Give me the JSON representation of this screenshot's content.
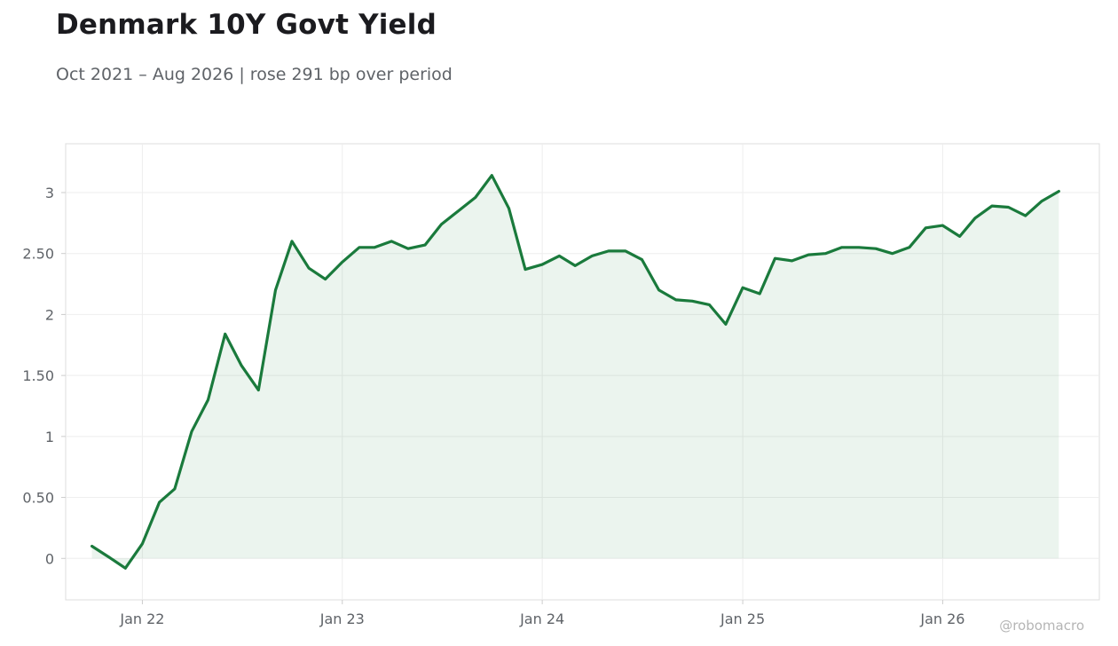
{
  "header": {
    "title": "Denmark 10Y Govt Yield",
    "subtitle": "Oct 2021 – Aug 2026 | rose 291 bp over period"
  },
  "watermark": "@robomacro",
  "colors": {
    "line": "#1a7a3c",
    "fill": "#1a7a3c",
    "grid": "#eeeeee",
    "frame": "#dddddd"
  },
  "chart_data": {
    "type": "area",
    "title": "Denmark 10Y Govt Yield",
    "subtitle": "Oct 2021 – Aug 2026 | rose 291 bp over period",
    "xlabel": "",
    "ylabel": "",
    "ylim": [
      -0.34,
      3.4
    ],
    "xlim": [
      "2021-08-14",
      "2026-10-14"
    ],
    "grid": true,
    "legend": "none",
    "x_ticks": [
      {
        "date": "2022-01-01",
        "label": "Jan 22"
      },
      {
        "date": "2023-01-01",
        "label": "Jan 23"
      },
      {
        "date": "2024-01-01",
        "label": "Jan 24"
      },
      {
        "date": "2025-01-01",
        "label": "Jan 25"
      },
      {
        "date": "2026-01-01",
        "label": "Jan 26"
      }
    ],
    "y_ticks": [
      {
        "value": 0,
        "label": "0"
      },
      {
        "value": 0.5,
        "label": "0.50"
      },
      {
        "value": 1,
        "label": "1"
      },
      {
        "value": 1.5,
        "label": "1.50"
      },
      {
        "value": 2,
        "label": "2"
      },
      {
        "value": 2.5,
        "label": "2.50"
      },
      {
        "value": 3,
        "label": "3"
      }
    ],
    "series": [
      {
        "points": [
          [
            "2021-10-01",
            0.1
          ],
          [
            "2021-11-01",
            0.01
          ],
          [
            "2021-12-01",
            -0.08
          ],
          [
            "2022-01-01",
            0.12
          ],
          [
            "2022-02-01",
            0.46
          ],
          [
            "2022-03-01",
            0.57
          ],
          [
            "2022-04-01",
            1.04
          ],
          [
            "2022-05-01",
            1.3
          ],
          [
            "2022-06-01",
            1.84
          ],
          [
            "2022-07-01",
            1.58
          ],
          [
            "2022-08-01",
            1.38
          ],
          [
            "2022-09-01",
            2.2
          ],
          [
            "2022-10-01",
            2.6
          ],
          [
            "2022-11-01",
            2.38
          ],
          [
            "2022-12-01",
            2.29
          ],
          [
            "2023-01-01",
            2.43
          ],
          [
            "2023-02-01",
            2.55
          ],
          [
            "2023-03-01",
            2.55
          ],
          [
            "2023-04-01",
            2.6
          ],
          [
            "2023-05-01",
            2.54
          ],
          [
            "2023-06-01",
            2.57
          ],
          [
            "2023-07-01",
            2.74
          ],
          [
            "2023-08-01",
            2.85
          ],
          [
            "2023-09-01",
            2.96
          ],
          [
            "2023-10-01",
            3.14
          ],
          [
            "2023-11-01",
            2.87
          ],
          [
            "2023-12-01",
            2.37
          ],
          [
            "2024-01-01",
            2.41
          ],
          [
            "2024-02-01",
            2.48
          ],
          [
            "2024-03-01",
            2.4
          ],
          [
            "2024-04-01",
            2.48
          ],
          [
            "2024-05-01",
            2.52
          ],
          [
            "2024-06-01",
            2.52
          ],
          [
            "2024-07-01",
            2.45
          ],
          [
            "2024-08-01",
            2.2
          ],
          [
            "2024-09-01",
            2.12
          ],
          [
            "2024-10-01",
            2.11
          ],
          [
            "2024-11-01",
            2.08
          ],
          [
            "2024-12-01",
            1.92
          ],
          [
            "2025-01-01",
            2.22
          ],
          [
            "2025-02-01",
            2.17
          ],
          [
            "2025-03-01",
            2.46
          ],
          [
            "2025-04-01",
            2.44
          ],
          [
            "2025-05-01",
            2.49
          ],
          [
            "2025-06-01",
            2.5
          ],
          [
            "2025-07-01",
            2.55
          ],
          [
            "2025-08-01",
            2.55
          ],
          [
            "2025-09-01",
            2.54
          ],
          [
            "2025-10-01",
            2.5
          ],
          [
            "2025-11-01",
            2.55
          ],
          [
            "2025-12-01",
            2.71
          ],
          [
            "2026-01-01",
            2.73
          ],
          [
            "2026-02-01",
            2.64
          ],
          [
            "2026-03-01",
            2.79
          ],
          [
            "2026-04-01",
            2.89
          ],
          [
            "2026-05-01",
            2.88
          ],
          [
            "2026-06-01",
            2.81
          ],
          [
            "2026-07-01",
            2.93
          ],
          [
            "2026-08-01",
            3.01
          ]
        ]
      }
    ]
  }
}
